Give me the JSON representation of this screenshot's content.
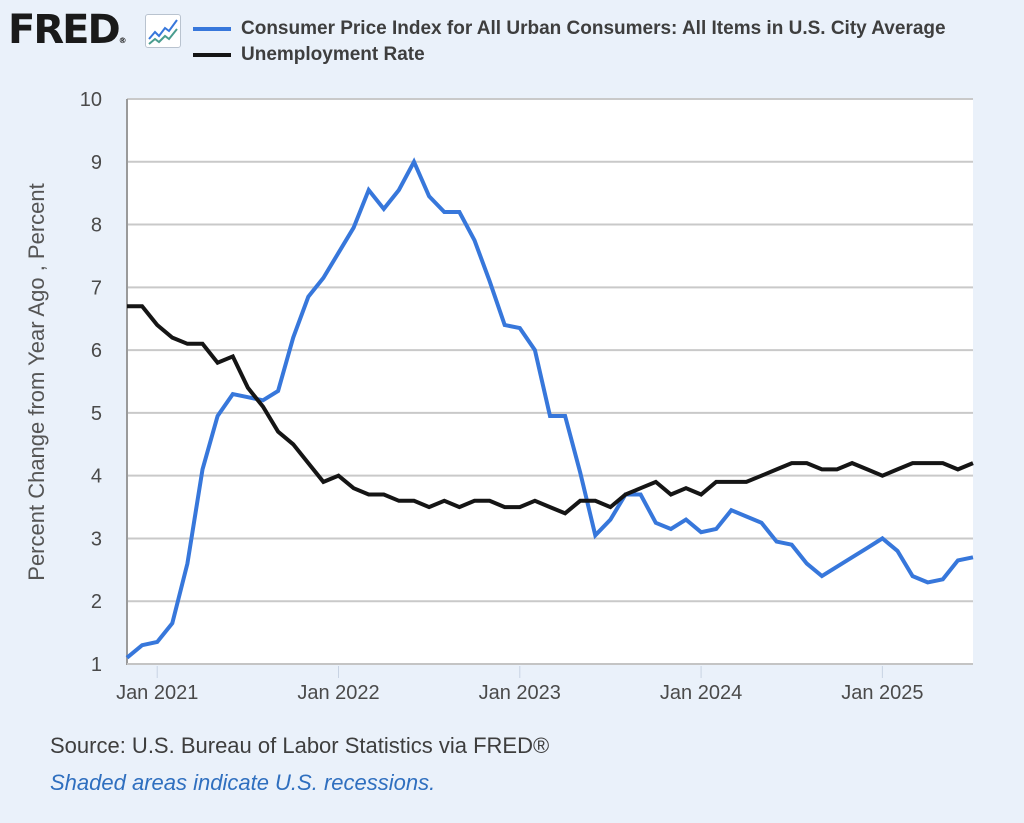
{
  "header": {
    "logo_text": "FRED",
    "logo_mark": "®",
    "logo_icon": "line-chart-icon"
  },
  "colors": {
    "cpi": "#3777db",
    "unrate": "#151515",
    "grid": "#c9c9c9",
    "plot_bg": "#ffffff",
    "page_bg": "#eaf1fa",
    "note": "#2f6fbf"
  },
  "footer": {
    "source": "Source: U.S. Bureau of Labor Statistics via FRED®",
    "note": "Shaded areas indicate U.S. recessions."
  },
  "chart_data": {
    "type": "line",
    "title": "",
    "xlabel": "",
    "ylabel": "Percent Change from Year Ago , Percent",
    "ylim": [
      1,
      10
    ],
    "yticks": [
      1,
      2,
      3,
      4,
      5,
      6,
      7,
      8,
      9,
      10
    ],
    "grid": true,
    "legend_position": "top",
    "x_start": "Nov 2020",
    "x_end": "Jul 2025",
    "frequency": "monthly",
    "xtick_labels": [
      "Jan 2021",
      "Jan 2022",
      "Jan 2023",
      "Jan 2024",
      "Jan 2025"
    ],
    "xtick_month_index": [
      2,
      14,
      26,
      38,
      50
    ],
    "series": [
      {
        "name": "Consumer Price Index for All Urban Consumers: All Items in U.S. City Average",
        "color_key": "cpi",
        "values": [
          1.1,
          1.3,
          1.35,
          1.65,
          2.6,
          4.1,
          4.95,
          5.3,
          5.25,
          5.2,
          5.35,
          6.2,
          6.85,
          7.15,
          7.55,
          7.95,
          8.55,
          8.25,
          8.55,
          9.0,
          8.45,
          8.2,
          8.2,
          7.75,
          7.1,
          6.4,
          6.35,
          6.0,
          4.95,
          4.95,
          4.05,
          3.05,
          3.3,
          3.7,
          3.7,
          3.25,
          3.15,
          3.3,
          3.1,
          3.15,
          3.45,
          3.35,
          3.25,
          2.95,
          2.9,
          2.6,
          2.4,
          2.55,
          2.7,
          2.85,
          3.0,
          2.8,
          2.4,
          2.3,
          2.35,
          2.65,
          2.7
        ]
      },
      {
        "name": "Unemployment Rate",
        "color_key": "unrate",
        "values": [
          6.7,
          6.7,
          6.4,
          6.2,
          6.1,
          6.1,
          5.8,
          5.9,
          5.4,
          5.1,
          4.7,
          4.5,
          4.2,
          3.9,
          4.0,
          3.8,
          3.7,
          3.7,
          3.6,
          3.6,
          3.5,
          3.6,
          3.5,
          3.6,
          3.6,
          3.5,
          3.5,
          3.6,
          3.5,
          3.4,
          3.6,
          3.6,
          3.5,
          3.7,
          3.8,
          3.9,
          3.7,
          3.8,
          3.7,
          3.9,
          3.9,
          3.9,
          4.0,
          4.1,
          4.2,
          4.2,
          4.1,
          4.1,
          4.2,
          4.1,
          4.0,
          4.1,
          4.2,
          4.2,
          4.2,
          4.1,
          4.2
        ]
      }
    ]
  }
}
